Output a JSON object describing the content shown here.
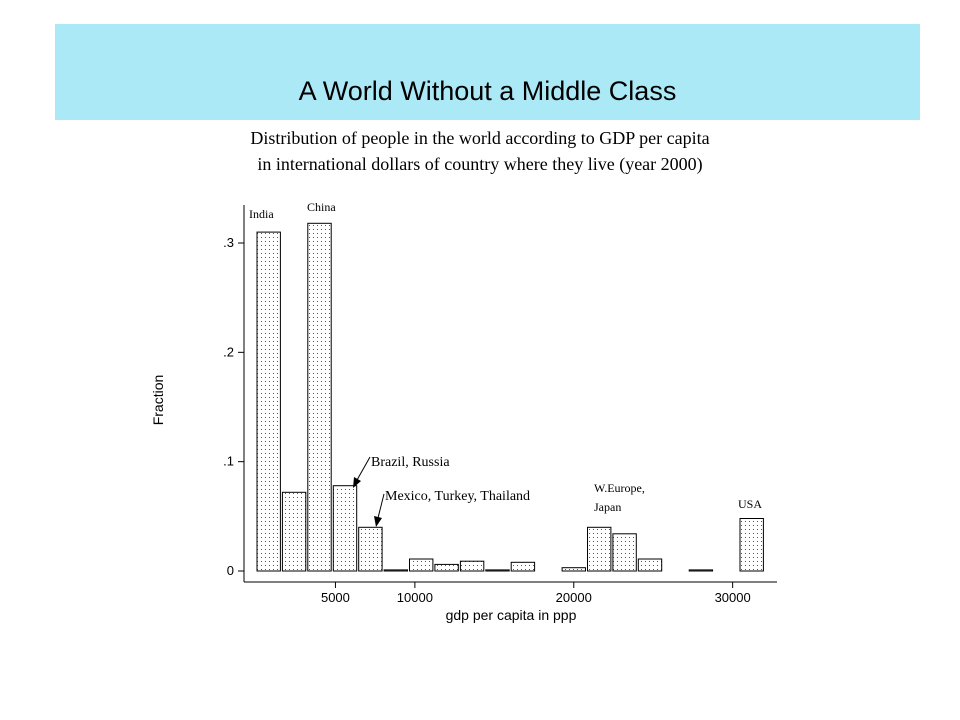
{
  "header": {
    "title": "A World Without a Middle Class",
    "background": "#aae9f5"
  },
  "subtitle": {
    "line1": "Distribution of people in the world according to GDP per capita",
    "line2": "in  international dollars of country where they live (year 2000)"
  },
  "chart_data": {
    "type": "bar",
    "xlabel": "gdp per capita in ppp",
    "ylabel": "Fraction",
    "xlim": [
      -1500,
      32500
    ],
    "ylim": [
      0,
      0.34
    ],
    "xticks": [
      {
        "value": 5000,
        "label": "5000"
      },
      {
        "value": 10000,
        "label": "10000"
      },
      {
        "value": 20000,
        "label": "20000"
      },
      {
        "value": 30000,
        "label": "30000"
      }
    ],
    "yticks": [
      {
        "value": 0,
        "label": "0"
      },
      {
        "value": 0.1,
        "label": ".1"
      },
      {
        "value": 0.2,
        "label": ".2"
      },
      {
        "value": 0.3,
        "label": ".3"
      }
    ],
    "bin_width": 1600,
    "bars": [
      {
        "x": 0,
        "value": 0.31
      },
      {
        "x": 1600,
        "value": 0.072
      },
      {
        "x": 3200,
        "value": 0.318
      },
      {
        "x": 4800,
        "value": 0.078
      },
      {
        "x": 6400,
        "value": 0.04
      },
      {
        "x": 8000,
        "value": 0.001
      },
      {
        "x": 9600,
        "value": 0.011
      },
      {
        "x": 11200,
        "value": 0.006
      },
      {
        "x": 12800,
        "value": 0.009
      },
      {
        "x": 14400,
        "value": 0.001
      },
      {
        "x": 16000,
        "value": 0.008
      },
      {
        "x": 19200,
        "value": 0.003
      },
      {
        "x": 20800,
        "value": 0.04
      },
      {
        "x": 22400,
        "value": 0.034
      },
      {
        "x": 24000,
        "value": 0.011
      },
      {
        "x": 27200,
        "value": 0.001
      },
      {
        "x": 30400,
        "value": 0.048
      }
    ],
    "annotations": [
      {
        "text": "India"
      },
      {
        "text": "China"
      },
      {
        "text": "Brazil, Russia"
      },
      {
        "text": "Mexico, Turkey, Thailand"
      },
      {
        "text": "W.Europe,"
      },
      {
        "text": "Japan"
      },
      {
        "text": "USA"
      }
    ],
    "grid": false,
    "legend": "none"
  }
}
